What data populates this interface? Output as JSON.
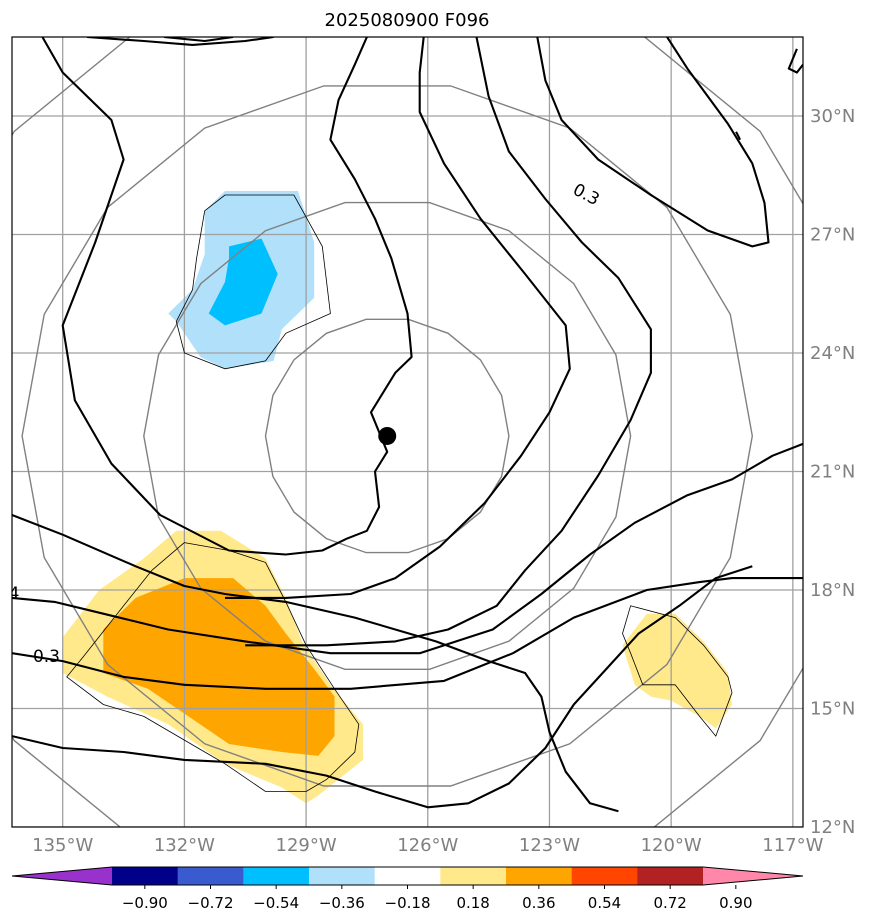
{
  "chart_data": {
    "type": "contour map",
    "title": "2025080900 F096",
    "xlabel": "",
    "ylabel": "",
    "lon_range": [
      -136.25,
      -116.75
    ],
    "lat_range": [
      12,
      32
    ],
    "lon_ticks": [
      -135,
      -132,
      -129,
      -126,
      -123,
      -120,
      -117
    ],
    "lon_tick_labels": [
      "135°W",
      "132°W",
      "129°W",
      "126°W",
      "123°W",
      "120°W",
      "117°W"
    ],
    "lat_ticks": [
      12,
      15,
      18,
      21,
      24,
      27,
      30
    ],
    "lat_tick_labels": [
      "12°N",
      "15°N",
      "18°N",
      "21°N",
      "24°N",
      "27°N",
      "30°N"
    ],
    "grid": true,
    "center_marker": {
      "lon": -127.0,
      "lat": 21.9
    },
    "contour_labels": [
      {
        "text": "0.3",
        "lon": -122.1,
        "lat": 28.0
      },
      {
        "text": "0.3",
        "lon": -135.4,
        "lat": 16.3
      },
      {
        "text": "4",
        "lon": -136.2,
        "lat": 17.9
      }
    ],
    "colorbar": {
      "boundaries": [
        "−0.90",
        "−0.72",
        "−0.54",
        "−0.36",
        "−0.18",
        "0.18",
        "0.36",
        "0.54",
        "0.72",
        "0.90"
      ],
      "colors": [
        "#9932cc",
        "#00008b",
        "#3a5bd0",
        "#00bfff",
        "#b0e0fa",
        "#ffffff",
        "#ffe98a",
        "#ffa500",
        "#ff4500",
        "#b22222",
        "#ff88aa"
      ]
    },
    "shaded_regions": [
      {
        "level": "-0.36 to -0.18",
        "color": "#b0e0fa",
        "polygon": [
          [
            -131.0,
            28.1
          ],
          [
            -129.2,
            28.1
          ],
          [
            -128.8,
            26.8
          ],
          [
            -128.8,
            25.4
          ],
          [
            -129.6,
            24.6
          ],
          [
            -129.8,
            23.8
          ],
          [
            -131.0,
            23.6
          ],
          [
            -131.6,
            23.9
          ],
          [
            -132.2,
            24.8
          ],
          [
            -132.4,
            25.0
          ],
          [
            -131.8,
            25.6
          ],
          [
            -131.5,
            26.5
          ],
          [
            -131.5,
            27.6
          ]
        ]
      },
      {
        "level": "-0.54 to -0.36",
        "color": "#00bfff",
        "polygon": [
          [
            -130.9,
            26.7
          ],
          [
            -130.1,
            26.9
          ],
          [
            -129.7,
            26.0
          ],
          [
            -130.1,
            25.0
          ],
          [
            -131.0,
            24.7
          ],
          [
            -131.4,
            25.0
          ],
          [
            -131.0,
            25.8
          ],
          [
            -130.9,
            26.4
          ]
        ]
      },
      {
        "level": "0.18 to 0.36",
        "color": "#ffe98a",
        "polygon": [
          [
            -132.2,
            19.5
          ],
          [
            -131.1,
            19.5
          ],
          [
            -130.0,
            18.8
          ],
          [
            -129.5,
            17.8
          ],
          [
            -129.1,
            16.7
          ],
          [
            -128.4,
            15.6
          ],
          [
            -127.6,
            14.6
          ],
          [
            -127.6,
            13.7
          ],
          [
            -128.7,
            12.8
          ],
          [
            -129.0,
            12.6
          ],
          [
            -129.6,
            13.0
          ],
          [
            -131.0,
            13.6
          ],
          [
            -132.4,
            14.6
          ],
          [
            -133.9,
            15.3
          ],
          [
            -135.0,
            15.9
          ],
          [
            -135.0,
            16.8
          ],
          [
            -134.1,
            18.0
          ],
          [
            -133.0,
            18.8
          ]
        ]
      },
      {
        "level": "0.36 to 0.54",
        "color": "#ffa500",
        "polygon": [
          [
            -132.0,
            18.3
          ],
          [
            -130.8,
            18.3
          ],
          [
            -130.0,
            17.6
          ],
          [
            -129.5,
            16.9
          ],
          [
            -128.8,
            16.0
          ],
          [
            -128.3,
            15.3
          ],
          [
            -128.3,
            14.3
          ],
          [
            -128.7,
            13.8
          ],
          [
            -129.6,
            13.9
          ],
          [
            -130.9,
            14.1
          ],
          [
            -131.9,
            14.8
          ],
          [
            -132.9,
            15.5
          ],
          [
            -134.0,
            15.9
          ],
          [
            -134.0,
            17.0
          ],
          [
            -133.2,
            17.8
          ]
        ]
      },
      {
        "level": "0.18 to 0.36",
        "color": "#ffe98a",
        "polygon": [
          [
            -120.6,
            17.4
          ],
          [
            -119.9,
            17.4
          ],
          [
            -119.2,
            16.7
          ],
          [
            -118.6,
            15.9
          ],
          [
            -118.5,
            15.1
          ],
          [
            -118.9,
            14.5
          ],
          [
            -119.3,
            14.8
          ],
          [
            -120.0,
            15.2
          ],
          [
            -120.5,
            15.3
          ],
          [
            -120.9,
            15.6
          ],
          [
            -121.2,
            16.6
          ]
        ]
      }
    ],
    "contours": [
      {
        "name": "contour-a",
        "points": [
          [
            -135.5,
            32
          ],
          [
            -135.0,
            31.1
          ],
          [
            -133.8,
            29.9
          ],
          [
            -133.5,
            28.9
          ],
          [
            -134.2,
            26.8
          ],
          [
            -135.0,
            24.7
          ],
          [
            -134.7,
            22.8
          ],
          [
            -133.8,
            21.2
          ],
          [
            -132.6,
            19.9
          ],
          [
            -130.9,
            19.0
          ],
          [
            -129.5,
            18.9
          ],
          [
            -128.6,
            19.0
          ],
          [
            -128.0,
            19.3
          ],
          [
            -127.5,
            19.5
          ],
          [
            -127.2,
            20.1
          ],
          [
            -127.3,
            21.0
          ],
          [
            -127.0,
            21.5
          ],
          [
            -127.4,
            22.5
          ],
          [
            -126.8,
            23.5
          ],
          [
            -126.4,
            23.9
          ],
          [
            -126.5,
            25.0
          ],
          [
            -126.9,
            26.4
          ],
          [
            -127.3,
            27.4
          ],
          [
            -127.8,
            28.4
          ],
          [
            -128.4,
            29.4
          ],
          [
            -128.2,
            30.4
          ],
          [
            -127.8,
            31.3
          ],
          [
            -127.5,
            32
          ]
        ]
      },
      {
        "name": "contour-b",
        "points": [
          [
            -136.25,
            19.9
          ],
          [
            -135.0,
            19.4
          ],
          [
            -133.2,
            18.6
          ],
          [
            -132.0,
            18.1
          ],
          [
            -131.0,
            17.9
          ],
          [
            -129.5,
            17.7
          ],
          [
            -127.8,
            17.3
          ],
          [
            -125.8,
            16.7
          ],
          [
            -124.5,
            16.2
          ],
          [
            -123.6,
            15.9
          ],
          [
            -123.2,
            15.3
          ],
          [
            -123.0,
            14.4
          ],
          [
            -122.6,
            13.4
          ],
          [
            -122.0,
            12.6
          ],
          [
            -121.3,
            12.4
          ]
        ]
      },
      {
        "name": "contour-c",
        "points": [
          [
            -136.25,
            17.8
          ],
          [
            -135.2,
            17.7
          ],
          [
            -134.0,
            17.4
          ],
          [
            -132.4,
            17.0
          ],
          [
            -130.5,
            16.7
          ],
          [
            -128.4,
            16.4
          ],
          [
            -126.2,
            16.4
          ],
          [
            -124.4,
            17.0
          ],
          [
            -123.2,
            17.9
          ],
          [
            -122.0,
            18.9
          ],
          [
            -120.9,
            19.7
          ],
          [
            -119.6,
            20.4
          ],
          [
            -118.5,
            20.8
          ],
          [
            -117.5,
            21.4
          ],
          [
            -116.75,
            21.7
          ]
        ]
      },
      {
        "name": "contour-d",
        "points": [
          [
            -136.25,
            16.4
          ],
          [
            -135.0,
            16.2
          ],
          [
            -133.5,
            15.8
          ],
          [
            -132.0,
            15.6
          ],
          [
            -130.0,
            15.5
          ],
          [
            -127.9,
            15.5
          ],
          [
            -125.6,
            15.7
          ],
          [
            -123.9,
            16.4
          ],
          [
            -122.4,
            17.3
          ],
          [
            -120.6,
            18.0
          ],
          [
            -119.3,
            18.2
          ],
          [
            -118.5,
            18.3
          ],
          [
            -117.3,
            18.3
          ],
          [
            -116.75,
            18.3
          ]
        ]
      },
      {
        "name": "contour-e",
        "points": [
          [
            -136.25,
            14.3
          ],
          [
            -135.0,
            14.0
          ],
          [
            -133.5,
            13.9
          ],
          [
            -132.0,
            13.7
          ],
          [
            -130.0,
            13.6
          ],
          [
            -128.5,
            13.3
          ],
          [
            -127.3,
            12.9
          ],
          [
            -126.0,
            12.5
          ],
          [
            -125.0,
            12.6
          ],
          [
            -124.0,
            13.1
          ],
          [
            -123.1,
            14.0
          ],
          [
            -122.4,
            15.1
          ],
          [
            -121.6,
            16.0
          ],
          [
            -120.8,
            16.9
          ],
          [
            -119.8,
            17.6
          ],
          [
            -118.9,
            18.3
          ],
          [
            -118.0,
            18.6
          ]
        ]
      },
      {
        "name": "contour-f",
        "points": [
          [
            -134.4,
            32
          ],
          [
            -133.0,
            31.9
          ],
          [
            -131.8,
            31.8
          ],
          [
            -130.5,
            31.9
          ],
          [
            -129.8,
            32
          ]
        ]
      },
      {
        "name": "contour-g",
        "points": [
          [
            -132.5,
            32
          ],
          [
            -131.5,
            31.9
          ],
          [
            -130.8,
            32
          ]
        ]
      },
      {
        "name": "contour-h",
        "points": [
          [
            -126.1,
            32
          ],
          [
            -126.2,
            31.1
          ],
          [
            -126.2,
            30.1
          ],
          [
            -125.6,
            28.8
          ],
          [
            -124.7,
            27.4
          ],
          [
            -123.6,
            26.0
          ],
          [
            -122.6,
            24.7
          ],
          [
            -122.5,
            23.6
          ],
          [
            -123.0,
            22.5
          ],
          [
            -123.7,
            21.4
          ],
          [
            -124.6,
            20.2
          ],
          [
            -125.7,
            19.1
          ],
          [
            -126.8,
            18.3
          ],
          [
            -127.9,
            17.9
          ],
          [
            -129.5,
            17.8
          ],
          [
            -131.0,
            17.8
          ]
        ]
      },
      {
        "name": "contour-i",
        "points": [
          [
            -124.8,
            32
          ],
          [
            -124.5,
            30.5
          ],
          [
            -124.0,
            29.1
          ],
          [
            -123.1,
            27.9
          ],
          [
            -122.2,
            26.8
          ],
          [
            -121.3,
            25.9
          ],
          [
            -120.5,
            24.6
          ],
          [
            -120.5,
            23.5
          ],
          [
            -121.0,
            22.3
          ],
          [
            -121.8,
            20.9
          ],
          [
            -122.7,
            19.5
          ],
          [
            -123.6,
            18.5
          ],
          [
            -124.3,
            17.6
          ],
          [
            -125.5,
            17.0
          ],
          [
            -126.8,
            16.7
          ],
          [
            -128.5,
            16.6
          ],
          [
            -130.5,
            16.6
          ]
        ]
      },
      {
        "name": "contour-j",
        "points": [
          [
            -123.3,
            32
          ],
          [
            -123.1,
            30.9
          ],
          [
            -122.7,
            29.9
          ],
          [
            -121.8,
            28.9
          ],
          [
            -120.5,
            28.0
          ],
          [
            -119.1,
            27.1
          ],
          [
            -118.0,
            26.7
          ],
          [
            -117.6,
            26.8
          ],
          [
            -117.7,
            27.8
          ],
          [
            -118.0,
            28.8
          ],
          [
            -118.6,
            29.8
          ],
          [
            -119.1,
            30.5
          ],
          [
            -119.6,
            31.2
          ],
          [
            -120.1,
            32
          ]
        ]
      },
      {
        "name": "contour-k",
        "points": [
          [
            -116.9,
            31.7
          ],
          [
            -117.1,
            31.2
          ],
          [
            -116.9,
            31.1
          ],
          [
            -116.75,
            31.3
          ]
        ]
      },
      {
        "name": "contour-l",
        "points": [
          [
            -118.4,
            29.6
          ],
          [
            -118.3,
            29.4
          ]
        ]
      }
    ],
    "thin_outlines": [
      {
        "name": "outline-blue",
        "points": [
          [
            -131.0,
            28.0
          ],
          [
            -129.3,
            28.0
          ],
          [
            -128.6,
            26.7
          ],
          [
            -128.4,
            25.0
          ],
          [
            -129.5,
            24.5
          ],
          [
            -130.0,
            23.8
          ],
          [
            -131.0,
            23.6
          ],
          [
            -132.0,
            24.0
          ],
          [
            -132.2,
            24.8
          ],
          [
            -131.8,
            25.6
          ],
          [
            -131.7,
            26.4
          ],
          [
            -131.5,
            27.6
          ]
        ]
      },
      {
        "name": "outline-yellow-1",
        "points": [
          [
            -132.0,
            19.2
          ],
          [
            -130.9,
            19.0
          ],
          [
            -130.0,
            18.7
          ],
          [
            -129.5,
            17.7
          ],
          [
            -129.0,
            16.6
          ],
          [
            -128.3,
            15.5
          ],
          [
            -127.7,
            14.6
          ],
          [
            -127.8,
            13.9
          ],
          [
            -128.5,
            13.2
          ],
          [
            -129.0,
            12.9
          ],
          [
            -130.0,
            12.9
          ],
          [
            -131.0,
            13.6
          ],
          [
            -132.0,
            14.2
          ],
          [
            -133.0,
            14.8
          ],
          [
            -134.0,
            15.1
          ],
          [
            -134.9,
            15.8
          ],
          [
            -134.5,
            16.3
          ],
          [
            -133.5,
            17.6
          ],
          [
            -132.8,
            18.5
          ]
        ]
      },
      {
        "name": "outline-yellow-2",
        "points": [
          [
            -121.0,
            17.6
          ],
          [
            -119.9,
            17.3
          ],
          [
            -119.2,
            16.6
          ],
          [
            -118.6,
            15.8
          ],
          [
            -118.5,
            15.4
          ],
          [
            -118.9,
            14.3
          ],
          [
            -119.3,
            14.8
          ],
          [
            -119.9,
            15.6
          ],
          [
            -120.7,
            15.6
          ],
          [
            -121.0,
            16.4
          ],
          [
            -121.2,
            16.9
          ]
        ]
      }
    ],
    "distance_rings": [
      {
        "name": "ring-1",
        "radius_deg": 3.0
      },
      {
        "name": "ring-2",
        "radius_deg": 6.0
      },
      {
        "name": "ring-3",
        "radius_deg": 9.0
      },
      {
        "name": "ring-4",
        "radius_deg": 12.0
      }
    ]
  }
}
